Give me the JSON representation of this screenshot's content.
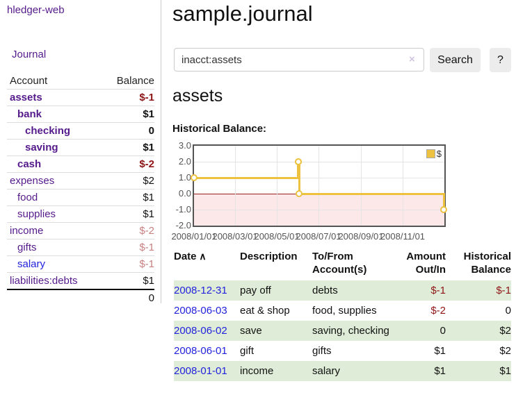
{
  "app": {
    "brand": "hledger-web"
  },
  "sidebar": {
    "journal_link": "Journal",
    "accounts_table": {
      "headers": {
        "account": "Account",
        "balance": "Balance"
      },
      "rows": [
        {
          "name": "assets",
          "indent": 0,
          "bold": true,
          "link_color": "#551a8b",
          "balance": "$-1",
          "balance_class": "b neg"
        },
        {
          "name": "bank",
          "indent": 1,
          "bold": true,
          "link_color": "#551a8b",
          "balance": "$1",
          "balance_class": "b"
        },
        {
          "name": "checking",
          "indent": 2,
          "bold": true,
          "link_color": "#551a8b",
          "balance": "0",
          "balance_class": "b"
        },
        {
          "name": "saving",
          "indent": 2,
          "bold": true,
          "link_color": "#551a8b",
          "balance": "$1",
          "balance_class": "b"
        },
        {
          "name": "cash",
          "indent": 1,
          "bold": true,
          "link_color": "#551a8b",
          "balance": "$-2",
          "balance_class": "b neg"
        },
        {
          "name": "expenses",
          "indent": 0,
          "bold": false,
          "link_color": "#551a8b",
          "balance": "$2",
          "balance_class": ""
        },
        {
          "name": "food",
          "indent": 1,
          "bold": false,
          "link_color": "#551a8b",
          "balance": "$1",
          "balance_class": ""
        },
        {
          "name": "supplies",
          "indent": 1,
          "bold": false,
          "link_color": "#551a8b",
          "balance": "$1",
          "balance_class": ""
        },
        {
          "name": "income",
          "indent": 0,
          "bold": false,
          "link_color": "#551a8b",
          "balance": "$-2",
          "balance_class": "negm"
        },
        {
          "name": "gifts",
          "indent": 1,
          "bold": false,
          "link_color": "#551a8b",
          "balance": "$-1",
          "balance_class": "negm"
        },
        {
          "name": "salary",
          "indent": 1,
          "bold": false,
          "link_color": "#2222dd",
          "balance": "$-1",
          "balance_class": "negm"
        },
        {
          "name": "liabilities:debts",
          "indent": 0,
          "bold": false,
          "link_color": "#551a8b",
          "balance": "$1",
          "balance_class": ""
        }
      ],
      "total": "0"
    }
  },
  "header": {
    "title": "sample.journal"
  },
  "search": {
    "value": "inacct:assets",
    "clear_icon": "×",
    "button_label": "Search",
    "help_label": "?"
  },
  "account_page": {
    "heading": "assets",
    "chart_title": "Historical Balance:"
  },
  "chart_data": {
    "type": "line",
    "title": "Historical Balance:",
    "step": true,
    "x_range": [
      "2008-01-01",
      "2009-01-01"
    ],
    "y_range": [
      -2.0,
      3.0
    ],
    "y_ticks": [
      3.0,
      2.0,
      1.0,
      0.0,
      -1.0,
      -2.0
    ],
    "x_ticks": [
      {
        "date": "2008-01-01",
        "label": "2008/01/01"
      },
      {
        "date": "2008-03-01",
        "label": "2008/03/01"
      },
      {
        "date": "2008-05-01",
        "label": "2008/05/01"
      },
      {
        "date": "2008-07-01",
        "label": "2008/07/01"
      },
      {
        "date": "2008-09-01",
        "label": "2008/09/01"
      },
      {
        "date": "2008-11-01",
        "label": "2008/11/01"
      }
    ],
    "series": [
      {
        "name": "$",
        "color": "#edc240",
        "points": [
          {
            "x": "2008-01-01",
            "y": 1
          },
          {
            "x": "2008-06-01",
            "y": 2
          },
          {
            "x": "2008-06-02",
            "y": 2
          },
          {
            "x": "2008-06-03",
            "y": 0
          },
          {
            "x": "2008-12-31",
            "y": -1
          }
        ]
      }
    ],
    "legend": {
      "position": "top-right",
      "entries": [
        {
          "label": "$",
          "color": "#edc240"
        }
      ]
    },
    "negative_region_color": "#fce8e8",
    "zero_line_color": "#9b1c1c",
    "grid": true
  },
  "register": {
    "headers": [
      {
        "label": "Date",
        "sort_icon": "∧",
        "align": "left"
      },
      {
        "label": "Description",
        "align": "left"
      },
      {
        "label": "To/From Account(s)",
        "align": "left"
      },
      {
        "label": "Amount Out/In",
        "align": "right"
      },
      {
        "label": "Historical Balance",
        "align": "right"
      }
    ],
    "rows": [
      {
        "date": "2008-12-31",
        "description": "pay off",
        "accounts": "debts",
        "amount": "$-1",
        "amount_negative": true,
        "balance": "$-1",
        "balance_negative": true,
        "shaded": true
      },
      {
        "date": "2008-06-03",
        "description": "eat & shop",
        "accounts": "food, supplies",
        "amount": "$-2",
        "amount_negative": true,
        "balance": "0",
        "balance_negative": false,
        "shaded": false
      },
      {
        "date": "2008-06-02",
        "description": "save",
        "accounts": "saving, checking",
        "amount": "0",
        "amount_negative": false,
        "balance": "$2",
        "balance_negative": false,
        "shaded": true
      },
      {
        "date": "2008-06-01",
        "description": "gift",
        "accounts": "gifts",
        "amount": "$1",
        "amount_negative": false,
        "balance": "$2",
        "balance_negative": false,
        "shaded": false
      },
      {
        "date": "2008-01-01",
        "description": "income",
        "accounts": "salary",
        "amount": "$1",
        "amount_negative": false,
        "balance": "$1",
        "balance_negative": false,
        "shaded": true
      }
    ]
  },
  "colors": {
    "link_purple": "#551a8b",
    "link_blue": "#2222dd",
    "negative_bold": "#8e1515",
    "negative_muted": "#c88080",
    "row_stripe_green": "#dfecd7",
    "chart_line_gold": "#edc240",
    "chart_text": "#545454"
  }
}
